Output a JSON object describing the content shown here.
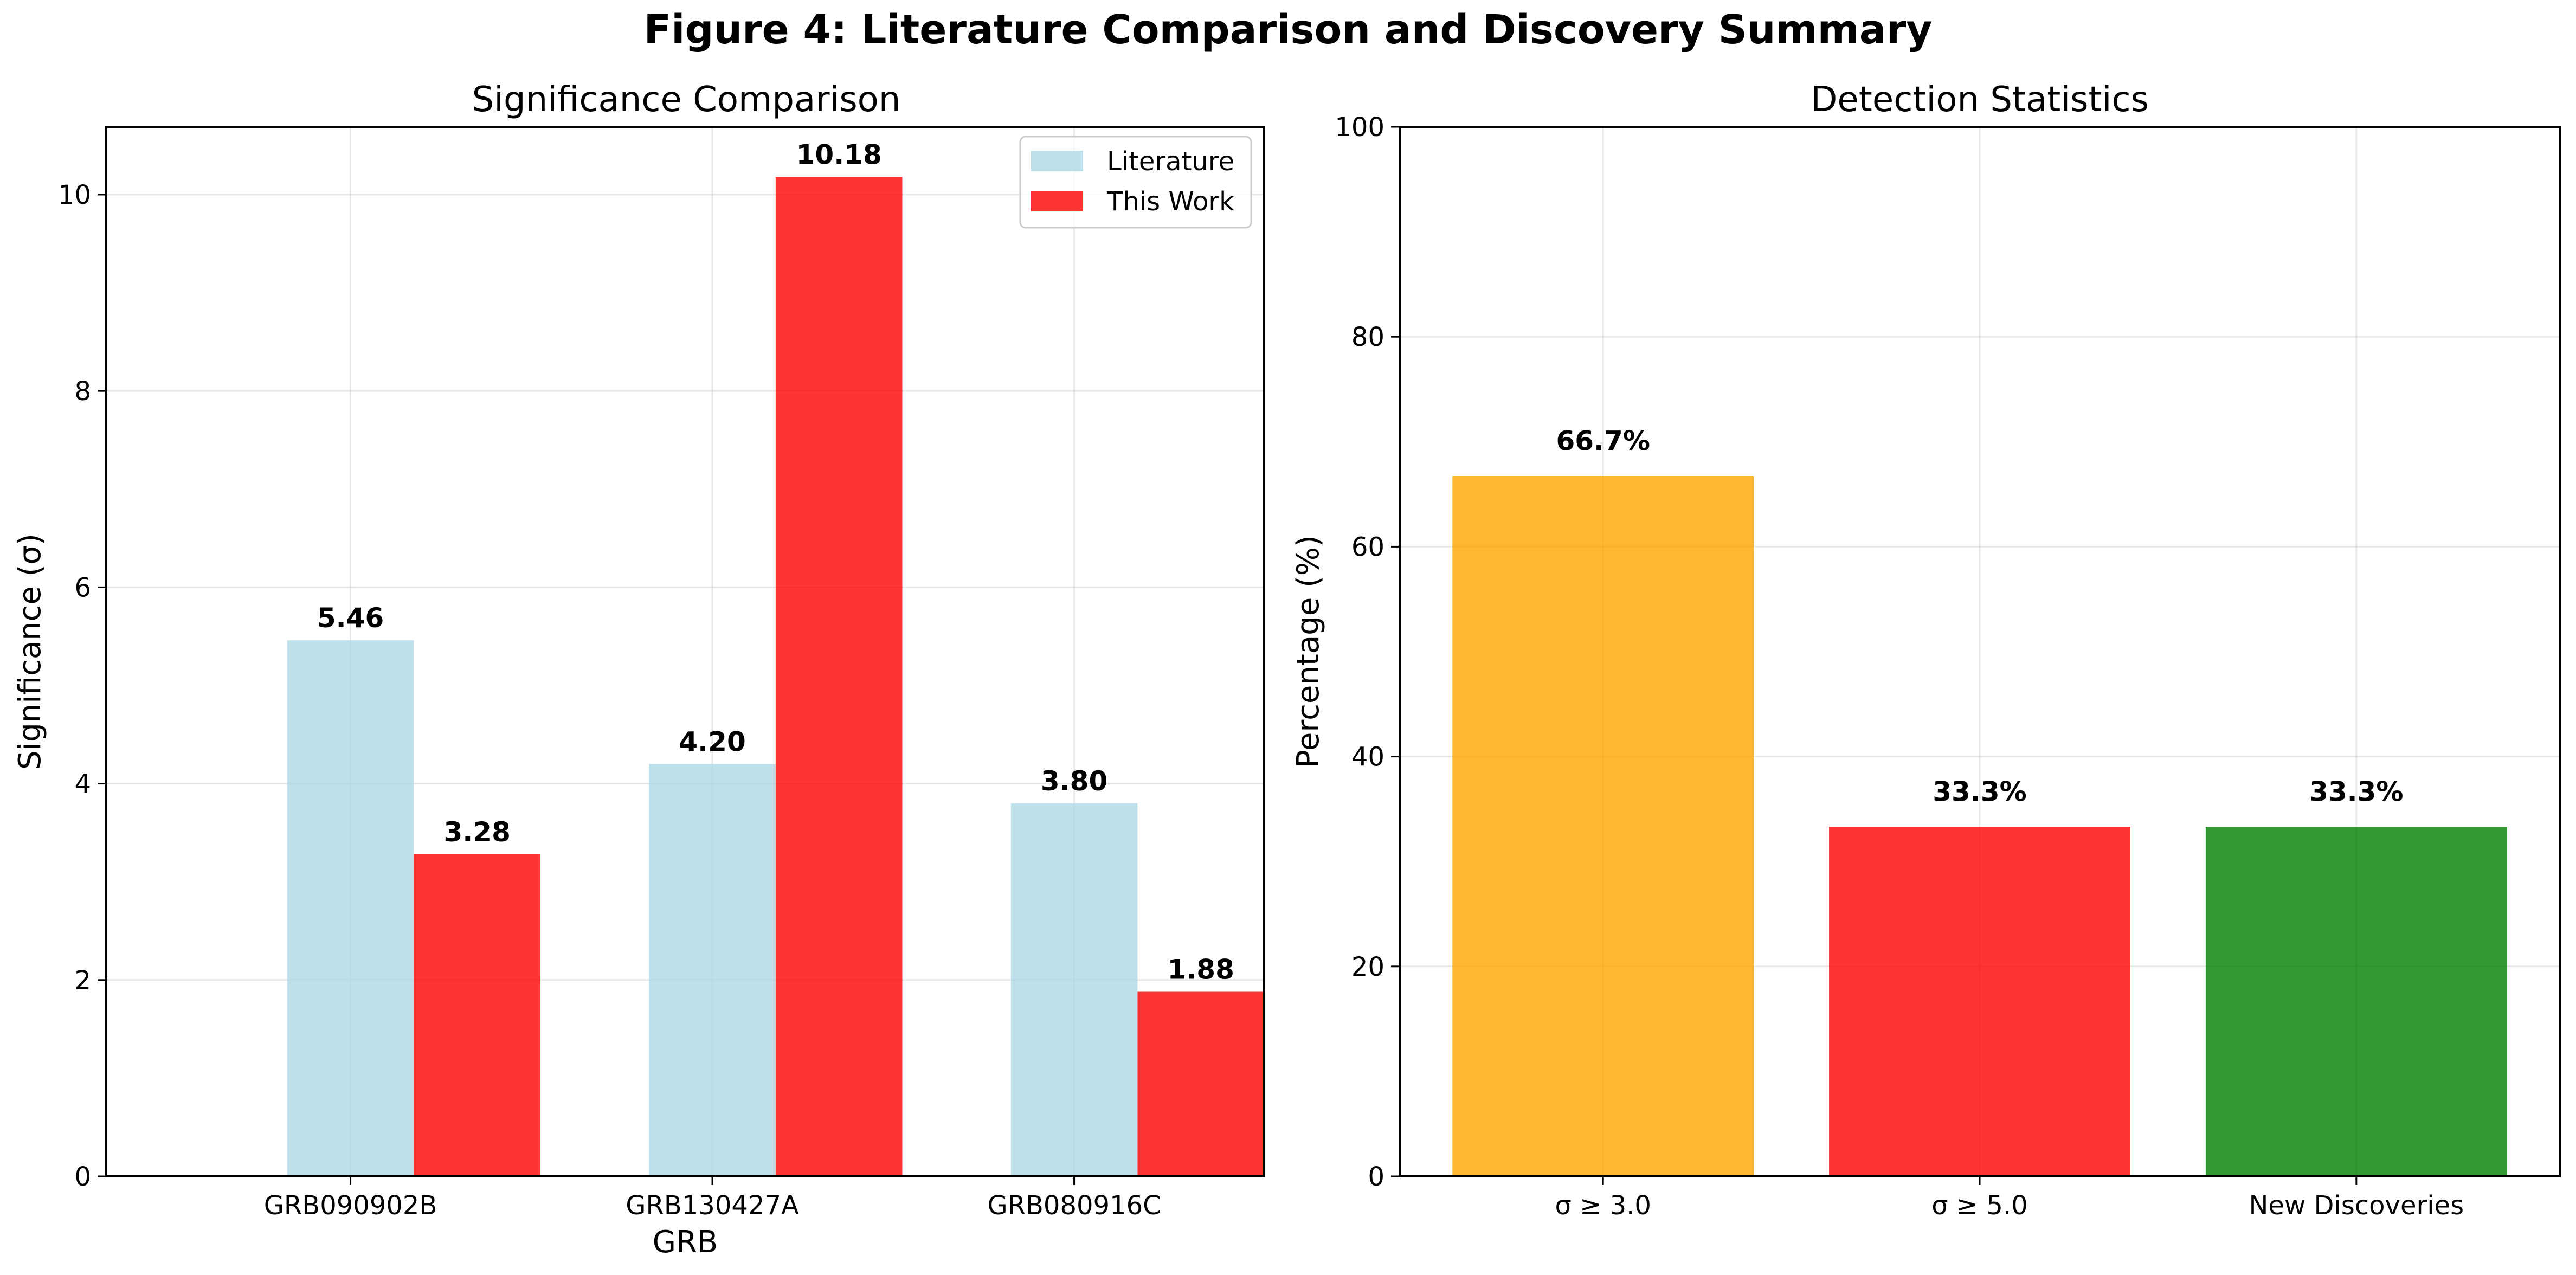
{
  "figure": {
    "title": "Figure 4: Literature Comparison and Discovery Summary"
  },
  "chart_data": [
    {
      "type": "bar",
      "title": "Significance Comparison",
      "xlabel": "GRB",
      "ylabel": "Significance (σ)",
      "categories": [
        "GRB090902B",
        "GRB130427A",
        "GRB080916C"
      ],
      "series": [
        {
          "name": "Literature",
          "values": [
            5.46,
            4.2,
            3.8
          ],
          "color": "#add8e6",
          "labels": [
            "5.46",
            "4.20",
            "3.80"
          ]
        },
        {
          "name": "This Work",
          "values": [
            3.28,
            10.18,
            1.88
          ],
          "color": "#ff0000",
          "labels": [
            "3.28",
            "10.18",
            "1.88"
          ]
        }
      ],
      "ylim": [
        0,
        10.69
      ],
      "yticks": [
        0,
        2,
        4,
        6,
        8,
        10
      ],
      "grid": true,
      "legend": "top-right"
    },
    {
      "type": "bar",
      "title": "Detection Statistics",
      "xlabel": "",
      "ylabel": "Percentage (%)",
      "categories": [
        "σ ≥ 3.0",
        "σ ≥ 5.0",
        "New Discoveries"
      ],
      "values": [
        66.7,
        33.3,
        33.3
      ],
      "labels": [
        "66.7%",
        "33.3%",
        "33.3%"
      ],
      "colors": [
        "#ffa500",
        "#ff0000",
        "#008000"
      ],
      "ylim": [
        0,
        100
      ],
      "yticks": [
        0,
        20,
        40,
        60,
        80,
        100
      ],
      "grid": true
    }
  ]
}
